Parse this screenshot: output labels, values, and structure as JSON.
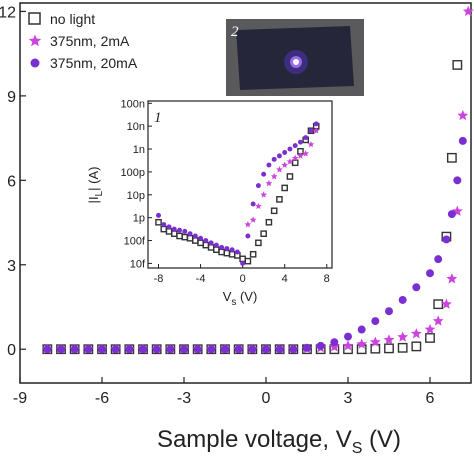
{
  "chart_data": [
    {
      "type": "scatter",
      "xlabel_main": "Sample voltage, V",
      "xlabel_sub": "S",
      "xlabel_unit": " (V)",
      "xlim": [
        -9,
        7.5
      ],
      "ylim": [
        -1.2,
        12.3
      ],
      "xticks": [
        -9,
        -6,
        -3,
        0,
        3,
        6
      ],
      "yticks": [
        0,
        3,
        6,
        9,
        12
      ],
      "legend_position": "top-left",
      "colors": {
        "no_light": "#333333",
        "uv_2mA": "#cc44dd",
        "uv_20mA": "#7a2fd0"
      },
      "series": [
        {
          "name": "no light",
          "marker": "square",
          "x": [
            -8,
            -7.5,
            -7,
            -6.5,
            -6,
            -5.5,
            -5,
            -4.5,
            -4,
            -3.5,
            -3,
            -2.5,
            -2,
            -1.5,
            -1,
            -0.5,
            0,
            0.5,
            1,
            1.5,
            2,
            2.5,
            3,
            3.5,
            4,
            4.5,
            5,
            5.5,
            6,
            6.3,
            6.6,
            6.8,
            7
          ],
          "y": [
            0,
            0,
            0,
            0,
            0,
            0,
            0,
            0,
            0,
            0,
            0,
            0,
            0,
            0,
            0,
            0,
            0,
            0,
            0,
            0,
            0,
            0,
            0,
            0,
            0.02,
            0.03,
            0.05,
            0.1,
            0.4,
            1.6,
            4.0,
            6.8,
            10.1
          ]
        },
        {
          "name": "375nm, 2mA",
          "marker": "star",
          "x": [
            -8,
            -7.5,
            -7,
            -6.5,
            -6,
            -5.5,
            -5,
            -4.5,
            -4,
            -3.5,
            -3,
            -2.5,
            -2,
            -1.5,
            -1,
            -0.5,
            0,
            0.5,
            1,
            1.5,
            2,
            2.5,
            3,
            3.5,
            4,
            4.5,
            5,
            5.5,
            6,
            6.3,
            6.6,
            6.8,
            7,
            7.2,
            7.4
          ],
          "y": [
            0,
            0,
            0,
            0,
            0,
            0,
            0,
            0,
            0,
            0,
            0,
            0,
            0,
            0,
            0,
            0,
            0,
            0,
            0,
            0.02,
            0.05,
            0.08,
            0.12,
            0.18,
            0.25,
            0.33,
            0.43,
            0.55,
            0.7,
            1.0,
            1.6,
            2.5,
            4.9,
            8.3,
            12.0
          ]
        },
        {
          "name": "375nm, 20mA",
          "marker": "circle",
          "x": [
            -8,
            -7.5,
            -7,
            -6.5,
            -6,
            -5.5,
            -5,
            -4.5,
            -4,
            -3.5,
            -3,
            -2.5,
            -2,
            -1.5,
            -1,
            -0.5,
            0,
            0.5,
            1,
            1.5,
            2,
            2.5,
            3,
            3.5,
            4,
            4.5,
            5,
            5.5,
            6,
            6.3,
            6.6,
            6.8,
            7,
            7.2
          ],
          "y": [
            0,
            0,
            0,
            0,
            0,
            0,
            0,
            0,
            0,
            0,
            0,
            0,
            0,
            0,
            0,
            0,
            0,
            0,
            0,
            0.05,
            0.12,
            0.25,
            0.45,
            0.7,
            1.0,
            1.35,
            1.75,
            2.2,
            2.7,
            3.2,
            3.9,
            4.8,
            6.0,
            7.4
          ]
        }
      ]
    },
    {
      "type": "scatter",
      "panel_label": "1",
      "log_y": true,
      "xlabel_main": "V",
      "xlabel_sub": "s",
      "xlabel_unit": " (V)",
      "ylabel_pre": "|I",
      "ylabel_sub": "L",
      "ylabel_post": "| (A)",
      "xlim": [
        -9,
        8.5
      ],
      "ylim_exp": [
        -14.2,
        -6.9
      ],
      "xticks": [
        -8,
        -4,
        0,
        4,
        8
      ],
      "yticks": [
        {
          "exp": -14,
          "label": "10f"
        },
        {
          "exp": -13,
          "label": "100f"
        },
        {
          "exp": -12,
          "label": "1p"
        },
        {
          "exp": -11,
          "label": "10p"
        },
        {
          "exp": -10,
          "label": "100p"
        },
        {
          "exp": -9,
          "label": "1n"
        },
        {
          "exp": -8,
          "label": "10n"
        },
        {
          "exp": -7,
          "label": "100n"
        }
      ],
      "series": [
        {
          "name": "no light",
          "marker": "square",
          "x": [
            -8,
            -7.5,
            -7,
            -6.5,
            -6,
            -5.5,
            -5,
            -4.5,
            -4,
            -3.5,
            -3,
            -2.5,
            -2,
            -1.5,
            -1,
            -0.5,
            0,
            0.5,
            1,
            1.5,
            2,
            2.5,
            3,
            3.5,
            4,
            4.5,
            5,
            5.5,
            6,
            6.5,
            7
          ],
          "log10_y": [
            -12.2,
            -12.5,
            -12.6,
            -12.7,
            -12.8,
            -12.85,
            -12.9,
            -13.0,
            -13.1,
            -13.2,
            -13.3,
            -13.4,
            -13.5,
            -13.55,
            -13.6,
            -13.65,
            -13.8,
            -13.9,
            -13.6,
            -13.1,
            -12.7,
            -12.2,
            -11.7,
            -11.2,
            -10.7,
            -10.2,
            -9.6,
            -9.1,
            -8.6,
            -8.2,
            -8.0
          ]
        },
        {
          "name": "375nm, 2mA",
          "marker": "star",
          "x": [
            0.5,
            1,
            1.5,
            2,
            2.5,
            3,
            3.5,
            4,
            4.5,
            5,
            5.5,
            6,
            6.5,
            7
          ],
          "log10_y": [
            -12.3,
            -12.1,
            -11.5,
            -11.0,
            -10.5,
            -10.2,
            -9.9,
            -9.7,
            -9.55,
            -9.4,
            -9.3,
            -9.2,
            -8.8,
            -8.2
          ]
        },
        {
          "name": "375nm, 20mA",
          "marker": "circle",
          "x": [
            -8,
            -7.5,
            -7,
            -6.5,
            -6,
            -5.5,
            -5,
            -4.5,
            -4,
            -3.5,
            -3,
            -2.5,
            -2,
            -1.5,
            -1,
            -0.5,
            0,
            0.5,
            1,
            1.5,
            2,
            2.5,
            3,
            3.5,
            4,
            4.5,
            5,
            5.5,
            6,
            6.5,
            7
          ],
          "log10_y": [
            -11.9,
            -12.3,
            -12.4,
            -12.5,
            -12.55,
            -12.6,
            -12.7,
            -12.8,
            -12.9,
            -13.0,
            -13.1,
            -13.2,
            -13.3,
            -13.35,
            -13.4,
            -13.5,
            -14.0,
            -12.8,
            -11.4,
            -10.6,
            -10.1,
            -9.7,
            -9.45,
            -9.3,
            -9.15,
            -9.0,
            -8.85,
            -8.7,
            -8.5,
            -8.2,
            -7.9
          ]
        }
      ]
    }
  ],
  "photo": {
    "label": "2"
  }
}
